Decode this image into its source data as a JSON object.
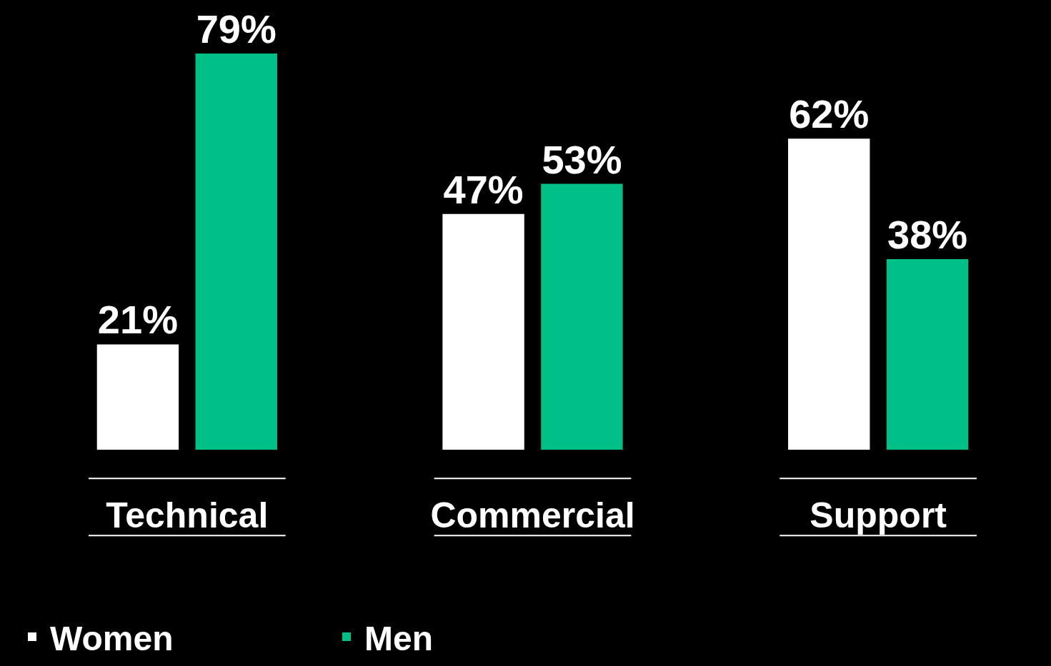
{
  "chart_data": {
    "type": "bar",
    "categories": [
      "Technical",
      "Commercial",
      "Support"
    ],
    "series": [
      {
        "name": "Women",
        "color": "#ffffff",
        "values": [
          21,
          47,
          62
        ],
        "value_labels": [
          "21%",
          "47%",
          "62%"
        ]
      },
      {
        "name": "Men",
        "color": "#00c087",
        "values": [
          79,
          53,
          38
        ],
        "value_labels": [
          "79%",
          "53%",
          "38%"
        ]
      }
    ],
    "legend": "bottom left",
    "grid": false,
    "tick_labels": "x"
  }
}
